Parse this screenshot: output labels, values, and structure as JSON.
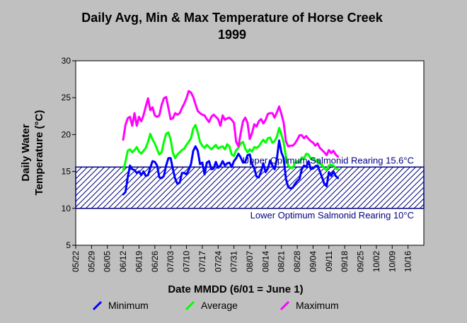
{
  "chart_data": {
    "type": "line",
    "title": "Daily Avg, Min & Max Temperature of Horse Creek",
    "subtitle": "1999",
    "xlabel": "Date MMDD (6/01 = June 1)",
    "ylabel_line1": "Daily Water",
    "ylabel_line2": "Temperature (°C)",
    "ylim": [
      5,
      30
    ],
    "yticks": [
      5,
      10,
      15,
      20,
      25,
      30
    ],
    "x_categories": [
      "05/22",
      "05/29",
      "06/05",
      "06/12",
      "06/19",
      "06/26",
      "07/03",
      "07/10",
      "07/17",
      "07/24",
      "07/31",
      "08/07",
      "08/14",
      "08/21",
      "08/28",
      "09/04",
      "09/11",
      "09/18",
      "09/25",
      "10/02",
      "10/09",
      "10/16"
    ],
    "x_range_days": [
      0,
      154
    ],
    "x_start_date": "05/22",
    "grid": false,
    "legend_position": "bottom",
    "colors": {
      "minimum": "#0000ff",
      "average": "#00ff00",
      "maximum": "#ff00ff",
      "band": "#000080",
      "background": "#c0c0c0",
      "plot_background": "#ffffff"
    },
    "band": {
      "low": 10,
      "high": 15.6,
      "upper_label": "Upper Optimum Salmonid Rearing 15.6°C",
      "lower_label": "Lower Optimum Salmonid Rearing 10°C"
    },
    "series": [
      {
        "name": "Minimum",
        "color": "#0000ff",
        "points": [
          [
            21,
            11.9
          ],
          [
            22,
            12.2
          ],
          [
            23,
            14.2
          ],
          [
            24,
            15.8
          ],
          [
            25,
            15.3
          ],
          [
            26,
            15.2
          ],
          [
            27,
            14.8
          ],
          [
            28,
            15.0
          ],
          [
            29,
            14.5
          ],
          [
            30,
            15.0
          ],
          [
            31,
            14.4
          ],
          [
            32,
            14.5
          ],
          [
            33,
            15.5
          ],
          [
            34,
            16.4
          ],
          [
            35,
            16.3
          ],
          [
            36,
            15.8
          ],
          [
            37,
            14.2
          ],
          [
            38,
            14.1
          ],
          [
            39,
            14.4
          ],
          [
            40,
            15.8
          ],
          [
            41,
            16.8
          ],
          [
            42,
            16.8
          ],
          [
            43,
            15.3
          ],
          [
            44,
            14.0
          ],
          [
            45,
            13.3
          ],
          [
            46,
            13.5
          ],
          [
            47,
            14.8
          ],
          [
            48,
            14.8
          ],
          [
            49,
            14.6
          ],
          [
            50,
            15.2
          ],
          [
            51,
            16.0
          ],
          [
            52,
            17.8
          ],
          [
            53,
            18.4
          ],
          [
            54,
            17.8
          ],
          [
            55,
            16.0
          ],
          [
            56,
            16.2
          ],
          [
            57,
            14.6
          ],
          [
            58,
            16.2
          ],
          [
            59,
            16.4
          ],
          [
            60,
            15.3
          ],
          [
            61,
            15.4
          ],
          [
            62,
            16.3
          ],
          [
            63,
            15.5
          ],
          [
            64,
            15.8
          ],
          [
            65,
            16.4
          ],
          [
            66,
            15.8
          ],
          [
            67,
            16.1
          ],
          [
            68,
            16.2
          ],
          [
            69,
            15.6
          ],
          [
            70,
            16.4
          ],
          [
            71,
            16.8
          ],
          [
            72,
            17.4
          ],
          [
            73,
            16.9
          ],
          [
            74,
            16.2
          ],
          [
            75,
            16.3
          ],
          [
            76,
            17.2
          ],
          [
            77,
            17.3
          ],
          [
            78,
            16.0
          ],
          [
            79,
            15.4
          ],
          [
            80,
            14.3
          ],
          [
            81,
            14.2
          ],
          [
            82,
            15.0
          ],
          [
            83,
            16.1
          ],
          [
            84,
            14.9
          ],
          [
            85,
            15.4
          ],
          [
            86,
            16.5
          ],
          [
            87,
            15.8
          ],
          [
            88,
            15.3
          ],
          [
            89,
            16.7
          ],
          [
            90,
            19.2
          ],
          [
            91,
            17.6
          ],
          [
            92,
            16.8
          ],
          [
            93,
            14.0
          ],
          [
            94,
            12.9
          ],
          [
            95,
            12.7
          ],
          [
            96,
            12.8
          ],
          [
            97,
            13.3
          ],
          [
            98,
            13.7
          ],
          [
            99,
            14.0
          ],
          [
            100,
            15.3
          ],
          [
            101,
            15.8
          ],
          [
            102,
            15.6
          ],
          [
            103,
            16.4
          ],
          [
            104,
            15.3
          ],
          [
            105,
            15.4
          ],
          [
            106,
            15.7
          ],
          [
            107,
            15.8
          ],
          [
            108,
            15.0
          ],
          [
            109,
            14.2
          ],
          [
            110,
            13.3
          ],
          [
            111,
            13.0
          ],
          [
            112,
            14.9
          ],
          [
            113,
            14.4
          ],
          [
            114,
            15.0
          ],
          [
            115,
            14.4
          ],
          [
            116,
            14.1
          ]
        ]
      },
      {
        "name": "Average",
        "color": "#00ff00",
        "points": [
          [
            21,
            15.1
          ],
          [
            22,
            16.3
          ],
          [
            23,
            17.8
          ],
          [
            24,
            18.0
          ],
          [
            25,
            17.6
          ],
          [
            26,
            17.9
          ],
          [
            27,
            18.3
          ],
          [
            28,
            17.7
          ],
          [
            29,
            17.4
          ],
          [
            30,
            17.8
          ],
          [
            31,
            18.2
          ],
          [
            32,
            19.0
          ],
          [
            33,
            20.1
          ],
          [
            34,
            19.3
          ],
          [
            35,
            18.8
          ],
          [
            36,
            18.0
          ],
          [
            37,
            17.3
          ],
          [
            38,
            17.6
          ],
          [
            39,
            19.0
          ],
          [
            40,
            20.1
          ],
          [
            41,
            20.3
          ],
          [
            42,
            19.3
          ],
          [
            43,
            17.5
          ],
          [
            44,
            16.8
          ],
          [
            45,
            17.3
          ],
          [
            46,
            17.6
          ],
          [
            47,
            17.9
          ],
          [
            48,
            18.1
          ],
          [
            49,
            18.6
          ],
          [
            50,
            19.0
          ],
          [
            51,
            19.5
          ],
          [
            52,
            20.8
          ],
          [
            53,
            21.3
          ],
          [
            54,
            20.3
          ],
          [
            55,
            19.0
          ],
          [
            56,
            18.5
          ],
          [
            57,
            18.2
          ],
          [
            58,
            18.6
          ],
          [
            59,
            18.3
          ],
          [
            60,
            18.0
          ],
          [
            61,
            18.3
          ],
          [
            62,
            18.6
          ],
          [
            63,
            18.1
          ],
          [
            64,
            18.3
          ],
          [
            65,
            18.4
          ],
          [
            66,
            18.0
          ],
          [
            67,
            18.7
          ],
          [
            68,
            18.4
          ],
          [
            69,
            17.3
          ],
          [
            70,
            17.1
          ],
          [
            71,
            17.9
          ],
          [
            72,
            18.2
          ],
          [
            73,
            18.8
          ],
          [
            74,
            19.0
          ],
          [
            75,
            18.1
          ],
          [
            76,
            17.6
          ],
          [
            77,
            18.0
          ],
          [
            78,
            17.7
          ],
          [
            79,
            18.3
          ],
          [
            80,
            18.2
          ],
          [
            81,
            18.4
          ],
          [
            82,
            18.9
          ],
          [
            83,
            19.3
          ],
          [
            84,
            18.9
          ],
          [
            85,
            19.5
          ],
          [
            86,
            19.6
          ],
          [
            87,
            18.9
          ],
          [
            88,
            19.1
          ],
          [
            89,
            19.7
          ],
          [
            90,
            20.9
          ],
          [
            91,
            20.0
          ],
          [
            92,
            18.9
          ],
          [
            93,
            17.0
          ],
          [
            94,
            15.8
          ],
          [
            95,
            15.5
          ],
          [
            96,
            15.5
          ],
          [
            97,
            16.1
          ],
          [
            98,
            16.4
          ],
          [
            99,
            16.2
          ],
          [
            100,
            16.9
          ],
          [
            101,
            16.8
          ],
          [
            102,
            17.4
          ],
          [
            103,
            17.3
          ],
          [
            104,
            16.7
          ],
          [
            105,
            16.8
          ],
          [
            106,
            16.4
          ],
          [
            107,
            16.6
          ],
          [
            108,
            16.0
          ],
          [
            109,
            15.9
          ],
          [
            110,
            15.4
          ],
          [
            111,
            15.2
          ],
          [
            112,
            15.8
          ],
          [
            113,
            15.9
          ],
          [
            114,
            15.8
          ],
          [
            115,
            15.4
          ],
          [
            116,
            15.3
          ]
        ]
      },
      {
        "name": "Maximum",
        "color": "#ff00ff",
        "points": [
          [
            21,
            19.3
          ],
          [
            22,
            21.3
          ],
          [
            23,
            22.2
          ],
          [
            24,
            22.4
          ],
          [
            25,
            21.2
          ],
          [
            26,
            22.9
          ],
          [
            27,
            21.2
          ],
          [
            28,
            22.4
          ],
          [
            29,
            21.8
          ],
          [
            30,
            22.6
          ],
          [
            31,
            23.8
          ],
          [
            32,
            24.9
          ],
          [
            33,
            23.3
          ],
          [
            34,
            23.7
          ],
          [
            35,
            22.6
          ],
          [
            36,
            22.4
          ],
          [
            37,
            22.6
          ],
          [
            38,
            24.0
          ],
          [
            39,
            24.9
          ],
          [
            40,
            25.1
          ],
          [
            41,
            23.6
          ],
          [
            42,
            22.1
          ],
          [
            43,
            22.2
          ],
          [
            44,
            22.9
          ],
          [
            45,
            22.7
          ],
          [
            46,
            22.9
          ],
          [
            47,
            23.6
          ],
          [
            48,
            24.2
          ],
          [
            49,
            24.9
          ],
          [
            50,
            25.9
          ],
          [
            51,
            25.7
          ],
          [
            52,
            25.1
          ],
          [
            53,
            24.1
          ],
          [
            54,
            23.2
          ],
          [
            55,
            22.9
          ],
          [
            56,
            22.7
          ],
          [
            57,
            22.6
          ],
          [
            58,
            22.1
          ],
          [
            59,
            21.7
          ],
          [
            60,
            22.4
          ],
          [
            61,
            22.7
          ],
          [
            62,
            22.4
          ],
          [
            63,
            22.1
          ],
          [
            64,
            21.2
          ],
          [
            65,
            22.6
          ],
          [
            66,
            22.0
          ],
          [
            67,
            22.2
          ],
          [
            68,
            22.3
          ],
          [
            69,
            22.0
          ],
          [
            70,
            21.6
          ],
          [
            71,
            19.0
          ],
          [
            72,
            18.4
          ],
          [
            73,
            20.2
          ],
          [
            74,
            21.8
          ],
          [
            75,
            22.3
          ],
          [
            76,
            21.6
          ],
          [
            77,
            19.4
          ],
          [
            78,
            20.2
          ],
          [
            79,
            21.4
          ],
          [
            80,
            21.1
          ],
          [
            81,
            21.8
          ],
          [
            82,
            22.1
          ],
          [
            83,
            21.5
          ],
          [
            84,
            22.0
          ],
          [
            85,
            22.8
          ],
          [
            86,
            22.9
          ],
          [
            87,
            22.9
          ],
          [
            88,
            22.3
          ],
          [
            89,
            23.0
          ],
          [
            90,
            23.8
          ],
          [
            91,
            22.8
          ],
          [
            92,
            21.6
          ],
          [
            93,
            19.1
          ],
          [
            94,
            18.4
          ],
          [
            95,
            18.5
          ],
          [
            96,
            18.5
          ],
          [
            97,
            18.8
          ],
          [
            98,
            19.3
          ],
          [
            99,
            19.9
          ],
          [
            100,
            19.9
          ],
          [
            101,
            19.5
          ],
          [
            102,
            19.8
          ],
          [
            103,
            19.4
          ],
          [
            104,
            19.1
          ],
          [
            105,
            18.9
          ],
          [
            106,
            18.5
          ],
          [
            107,
            18.8
          ],
          [
            108,
            18.2
          ],
          [
            109,
            17.9
          ],
          [
            110,
            17.6
          ],
          [
            111,
            17.2
          ],
          [
            112,
            17.9
          ],
          [
            113,
            17.5
          ],
          [
            114,
            17.8
          ],
          [
            115,
            17.3
          ],
          [
            116,
            17.0
          ]
        ]
      }
    ]
  }
}
